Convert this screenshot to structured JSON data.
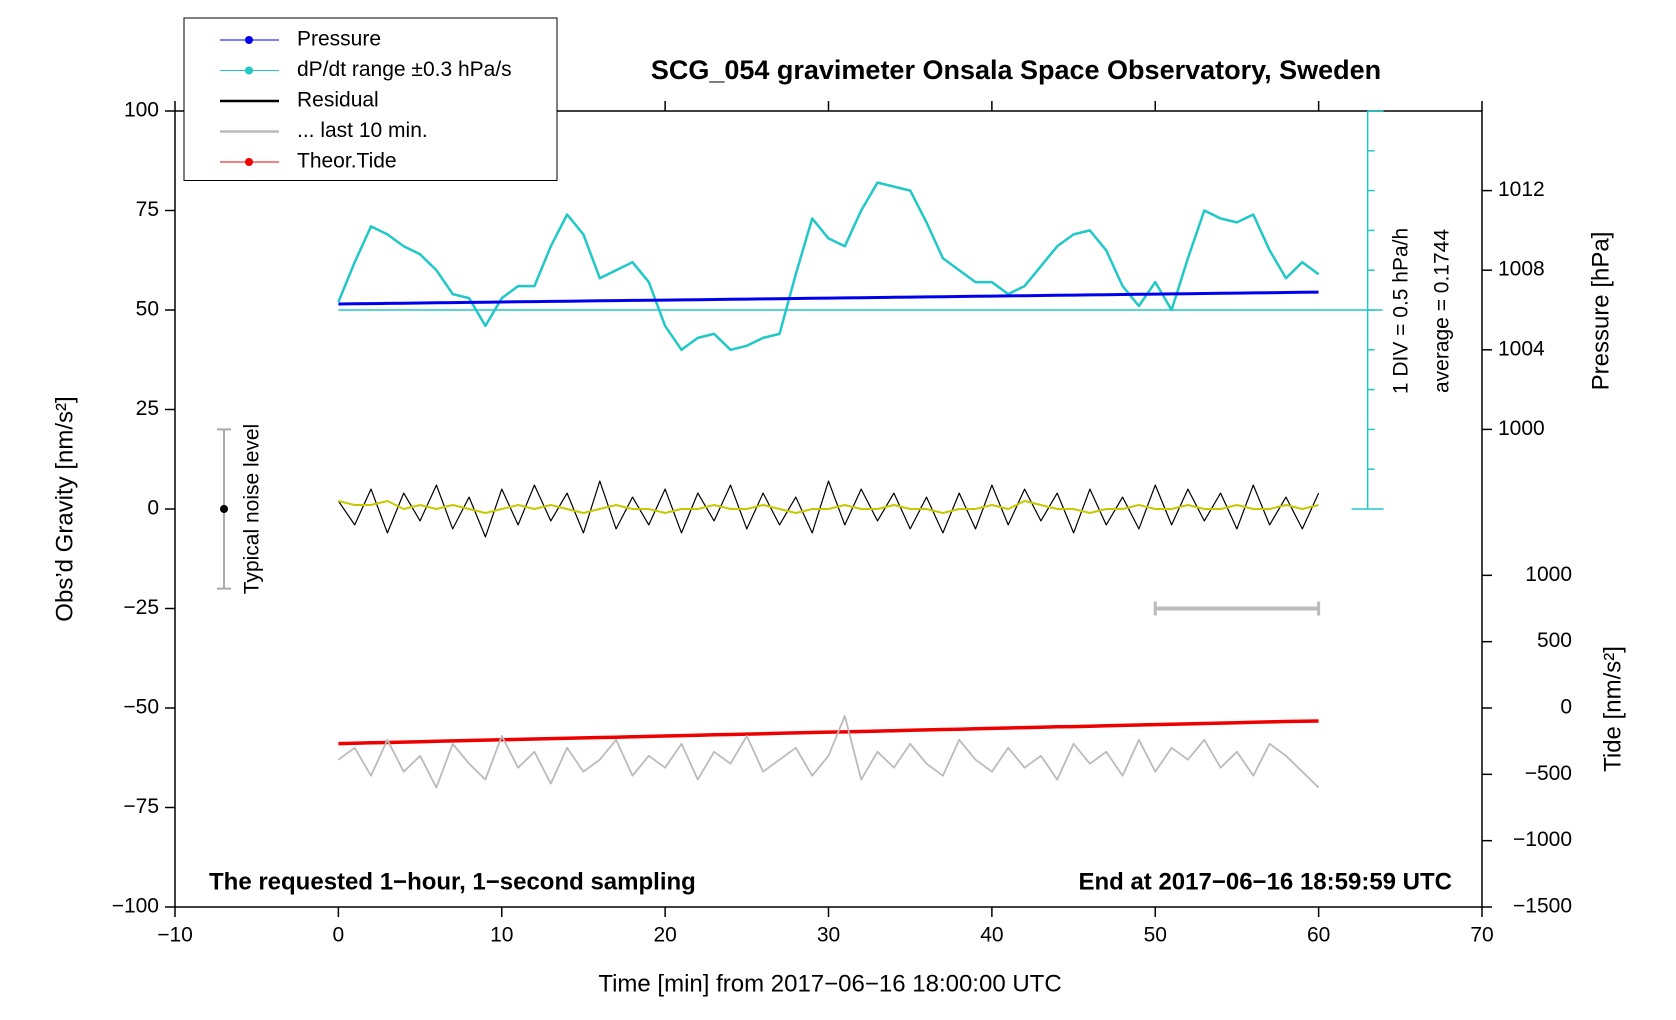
{
  "chart_data": {
    "type": "line",
    "title": "SCG_054 gravimeter Onsala Space Observatory, Sweden",
    "x_label": "Time [min] from 2017−06−16 18:00:00 UTC",
    "y_label": "Obs’d Gravity [nm/s²]",
    "y2_label": "Pressure [hPa]",
    "y3_label": "Tide [nm/s²]",
    "annotations": [
      "The requested 1−hour, 1−second sampling",
      "End at 2017−06−16 18:59:59 UTC",
      "1 DIV = 0.5 hPa/h",
      "average = 0.1744",
      "Typical noise level"
    ],
    "xlim": [
      -10,
      70
    ],
    "xticks": [
      {
        "value": -10,
        "label": "−10"
      },
      0,
      10,
      20,
      30,
      40,
      50,
      60,
      70
    ],
    "ylim": [
      -100,
      100
    ],
    "yticks": [
      {
        "value": -100,
        "label": "−100"
      },
      {
        "value": -75,
        "label": "−75"
      },
      {
        "value": -50,
        "label": "−50"
      },
      {
        "value": -25,
        "label": "−25"
      },
      0,
      25,
      50,
      75,
      100
    ],
    "y2lim": [
      976,
      1016
    ],
    "y2ticks": [
      1000,
      1004,
      1008,
      1012
    ],
    "y3lim": [
      -1500,
      4500
    ],
    "y3ticks": [
      {
        "value": -1500,
        "label": "−1500"
      },
      {
        "value": -1000,
        "label": "−1000"
      },
      {
        "value": -500,
        "label": "−500"
      },
      0,
      500,
      1000
    ],
    "legend": "upper left",
    "x": [
      0,
      1,
      2,
      3,
      4,
      5,
      6,
      7,
      8,
      9,
      10,
      11,
      12,
      13,
      14,
      15,
      16,
      17,
      18,
      19,
      20,
      21,
      22,
      23,
      24,
      25,
      26,
      27,
      28,
      29,
      30,
      31,
      32,
      33,
      34,
      35,
      36,
      37,
      38,
      39,
      40,
      41,
      42,
      43,
      44,
      45,
      46,
      47,
      48,
      49,
      50,
      51,
      52,
      53,
      54,
      55,
      56,
      57,
      58,
      59,
      60
    ],
    "series": [
      {
        "name": "Pressure",
        "color": "#0000ee",
        "axis": "y2",
        "marker": true,
        "width": 3,
        "values": [
          1006.3,
          1006.31,
          1006.32,
          1006.33,
          1006.34,
          1006.35,
          1006.36,
          1006.37,
          1006.38,
          1006.39,
          1006.4,
          1006.41,
          1006.42,
          1006.43,
          1006.44,
          1006.45,
          1006.46,
          1006.47,
          1006.48,
          1006.49,
          1006.5,
          1006.51,
          1006.52,
          1006.53,
          1006.54,
          1006.55,
          1006.56,
          1006.57,
          1006.58,
          1006.59,
          1006.6,
          1006.61,
          1006.62,
          1006.63,
          1006.64,
          1006.65,
          1006.66,
          1006.67,
          1006.68,
          1006.69,
          1006.7,
          1006.71,
          1006.72,
          1006.73,
          1006.74,
          1006.75,
          1006.76,
          1006.77,
          1006.78,
          1006.79,
          1006.8,
          1006.81,
          1006.82,
          1006.83,
          1006.84,
          1006.85,
          1006.86,
          1006.87,
          1006.88,
          1006.89,
          1006.9
        ]
      },
      {
        "name": "dP/dt range ±0.3 hPa/s",
        "color": "#20c8c8",
        "axis": "y",
        "marker": true,
        "width": 2.5,
        "values": [
          52,
          62,
          71,
          69,
          66,
          64,
          60,
          54,
          53,
          46,
          53,
          56,
          56,
          66,
          74,
          69,
          58,
          60,
          62,
          57,
          46,
          40,
          43,
          44,
          40,
          41,
          43,
          44,
          59,
          73,
          68,
          66,
          75,
          82,
          81,
          80,
          72,
          63,
          60,
          57,
          57,
          54,
          56,
          61,
          66,
          69,
          70,
          65,
          56,
          51,
          57,
          50,
          63,
          75,
          73,
          72,
          74,
          65,
          58,
          62,
          59
        ]
      },
      {
        "name": "Residual",
        "color": "#000000",
        "axis": "y",
        "marker": false,
        "width": 1.2,
        "values": [
          2,
          -4,
          5,
          -6,
          4,
          -3,
          6,
          -5,
          3,
          -7,
          5,
          -4,
          6,
          -3,
          4,
          -6,
          7,
          -5,
          3,
          -4,
          5,
          -6,
          4,
          -3,
          6,
          -5,
          4,
          -4,
          3,
          -6,
          7,
          -4,
          5,
          -3,
          4,
          -5,
          3,
          -6,
          4,
          -5,
          6,
          -4,
          5,
          -3,
          4,
          -6,
          5,
          -4,
          3,
          -5,
          6,
          -4,
          5,
          -3,
          4,
          -5,
          6,
          -4,
          3,
          -5,
          4
        ]
      },
      {
        "name": "... last 10 min.",
        "color": "#bbbbbb",
        "axis": "y",
        "marker": false,
        "width": 1.8,
        "values": [
          -63,
          -60,
          -67,
          -58,
          -66,
          -62,
          -70,
          -59,
          -64,
          -68,
          -57,
          -65,
          -61,
          -69,
          -60,
          -66,
          -63,
          -58,
          -67,
          -62,
          -65,
          -59,
          -68,
          -61,
          -64,
          -57,
          -66,
          -63,
          -60,
          -67,
          -62,
          -52,
          -68,
          -61,
          -65,
          -59,
          -64,
          -67,
          -58,
          -63,
          -66,
          -60,
          -65,
          -62,
          -68,
          -59,
          -64,
          -61,
          -67,
          -58,
          -66,
          -60,
          -63,
          -58,
          -65,
          -61,
          -67,
          -59,
          -62,
          -66,
          -70
        ]
      },
      {
        "name": "Theor.Tide",
        "color": "#ee0000",
        "axis": "y3",
        "marker": true,
        "width": 3.5,
        "values": [
          -268,
          -265,
          -262,
          -260,
          -257,
          -254,
          -251,
          -248,
          -245,
          -242,
          -240,
          -237,
          -234,
          -231,
          -228,
          -225,
          -222,
          -220,
          -217,
          -214,
          -211,
          -208,
          -205,
          -202,
          -200,
          -197,
          -194,
          -191,
          -188,
          -185,
          -182,
          -180,
          -177,
          -174,
          -171,
          -168,
          -165,
          -162,
          -160,
          -157,
          -154,
          -151,
          -148,
          -145,
          -142,
          -140,
          -137,
          -134,
          -131,
          -128,
          -125,
          -122,
          -120,
          -117,
          -114,
          -111,
          -108,
          -105,
          -102,
          -100,
          -98
        ]
      },
      {
        "color": "#c8c800",
        "axis": "y",
        "width": 2,
        "values": [
          2,
          1,
          1,
          2,
          0,
          1,
          0,
          1,
          0,
          -1,
          0,
          1,
          0,
          1,
          0,
          -1,
          0,
          1,
          0,
          0,
          -1,
          0,
          0,
          1,
          0,
          0,
          1,
          0,
          -1,
          0,
          0,
          1,
          0,
          0,
          1,
          0,
          0,
          -1,
          0,
          0,
          1,
          0,
          2,
          1,
          0,
          0,
          -1,
          0,
          0,
          1,
          0,
          0,
          1,
          0,
          0,
          1,
          0,
          0,
          1,
          0,
          1
        ]
      }
    ],
    "reference_line": {
      "y": 50,
      "color": "#20c8c8"
    },
    "dpdt_scale": {
      "x": 63,
      "range": [
        0,
        100
      ],
      "color": "#20c8c8"
    },
    "noise_bar": {
      "x": -7,
      "y": 0,
      "error": 20
    },
    "last10_bracket": {
      "x": [
        50,
        60
      ],
      "y": -25,
      "color": "#bbbbbb"
    }
  }
}
